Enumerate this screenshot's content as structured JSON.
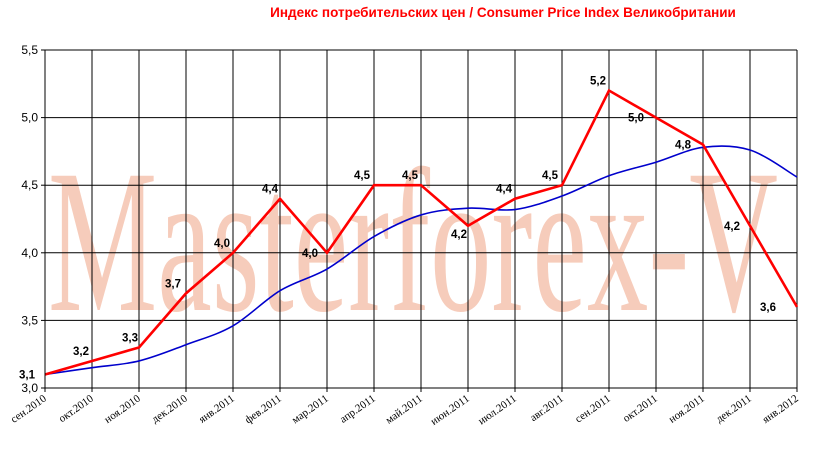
{
  "chart_data": {
    "type": "line",
    "title": "Индекс потребительских цен / Consumer Price Index Великобритании",
    "watermark": "Masterforex-V",
    "categories": [
      "сен.2010",
      "окт.2010",
      "ноя.2010",
      "дек.2010",
      "янв.2011",
      "фев.2011",
      "мар.2011",
      "апр.2011",
      "май.2011",
      "июн.2011",
      "июл.2011",
      "авг.2011",
      "сен.2011",
      "окт.2011",
      "ноя.2011",
      "дек.2011",
      "янв.2012"
    ],
    "ylim": [
      3.0,
      5.5
    ],
    "yticks": [
      "3,0",
      "3,5",
      "4,0",
      "4,5",
      "5,0",
      "5,5"
    ],
    "grid": true,
    "series": [
      {
        "color": "#ff0000",
        "values": [
          3.1,
          3.2,
          3.3,
          3.7,
          4.0,
          4.4,
          4.0,
          4.5,
          4.5,
          4.2,
          4.4,
          4.5,
          5.2,
          5.0,
          4.8,
          4.2,
          3.6
        ],
        "labels": [
          "3,1",
          "3,2",
          "3,3",
          "3,7",
          "4,0",
          "4,4",
          "4,0",
          "4,5",
          "4,5",
          "4,2",
          "4,4",
          "4,5",
          "5,2",
          "5,0",
          "4,8",
          "4,2",
          "3,6"
        ]
      },
      {
        "color": "#0000cc",
        "values": [
          3.1,
          3.15,
          3.2,
          3.32,
          3.46,
          3.72,
          3.88,
          4.12,
          4.28,
          4.33,
          4.32,
          4.42,
          4.57,
          4.67,
          4.78,
          4.76,
          4.56
        ]
      }
    ]
  }
}
